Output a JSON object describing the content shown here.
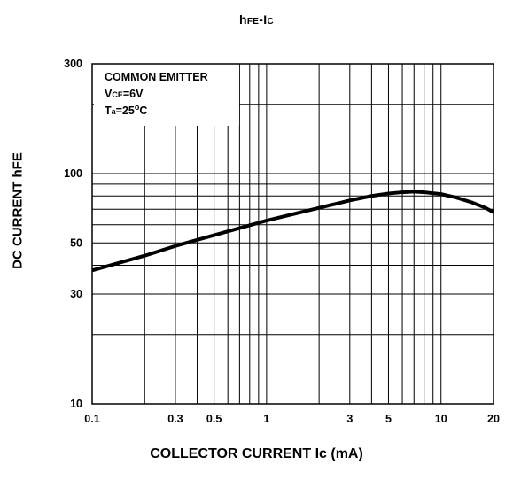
{
  "title": {
    "main_h": "h",
    "main_fe": "FE",
    "main_dash_i": "-I",
    "main_c": "C"
  },
  "legend": {
    "line1": "COMMON EMITTER",
    "line2_v": "V",
    "line2_sub": "CE",
    "line2_val": "=6V",
    "line3_t": "T",
    "line3_sub": "a",
    "line3_val": "=25",
    "line3_deg": "o",
    "line3_unit": "C"
  },
  "chart_data": {
    "type": "line",
    "title": "hFE-IC",
    "xlabel": "COLLECTOR CURRENT Ic (mA)",
    "ylabel": "DC CURRENT hFE",
    "xscale": "log",
    "yscale": "log",
    "xlim": [
      0.1,
      20
    ],
    "ylim": [
      10,
      300
    ],
    "grid": true,
    "x_ticks": [
      "0.1",
      "0.3",
      "0.5",
      "1",
      "3",
      "5",
      "10",
      "20"
    ],
    "x_tick_values": [
      0.1,
      0.3,
      0.5,
      1,
      3,
      5,
      10,
      20
    ],
    "y_ticks": [
      "10",
      "30",
      "50",
      "100",
      "300"
    ],
    "y_tick_values": [
      10,
      30,
      50,
      100,
      300
    ],
    "x_grid_values": [
      0.2,
      0.3,
      0.4,
      0.5,
      0.6,
      0.7,
      0.8,
      0.9,
      1,
      2,
      3,
      4,
      5,
      6,
      7,
      8,
      9,
      10
    ],
    "y_grid_values": [
      20,
      30,
      40,
      50,
      60,
      70,
      80,
      90,
      100,
      200
    ],
    "series": [
      {
        "x": [
          0.1,
          0.2,
          0.3,
          0.5,
          0.7,
          1,
          2,
          3,
          4,
          5,
          6,
          7,
          8,
          10,
          12,
          15,
          18,
          20
        ],
        "y": [
          38,
          44,
          48.5,
          54,
          58,
          62.5,
          71,
          76.5,
          80,
          82,
          83,
          83.5,
          83,
          81.5,
          79,
          75,
          71,
          68
        ]
      }
    ]
  }
}
